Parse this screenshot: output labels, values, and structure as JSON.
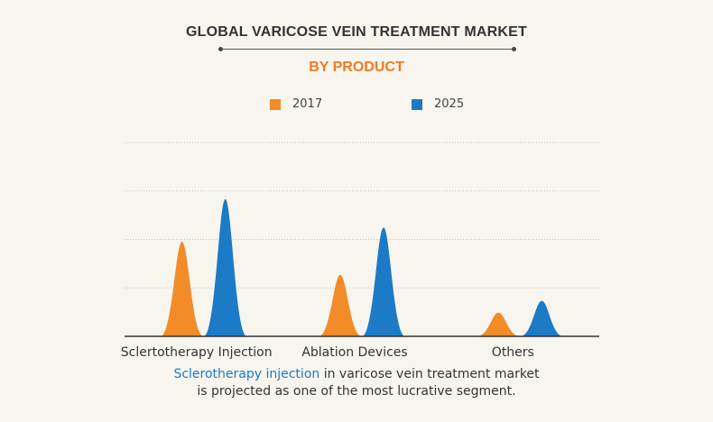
{
  "title": "GLOBAL VARICOSE VEIN TREATMENT MARKET",
  "subtitle": "BY PRODUCT",
  "colors": {
    "2017": "#f28c28",
    "2025": "#1b7bc6",
    "subtitle": "#f07a22",
    "highlight": "#1b7bc6"
  },
  "legend": [
    {
      "label": "2017",
      "color": "#f28c28"
    },
    {
      "label": "2025",
      "color": "#1b7bc6"
    }
  ],
  "chart_data": {
    "type": "area",
    "categories": [
      "Sclertotherapy Injection",
      "Ablation Devices",
      "Others"
    ],
    "series": [
      {
        "name": "2017",
        "values": [
          2.0,
          1.3,
          0.5
        ]
      },
      {
        "name": "2025",
        "values": [
          2.9,
          2.3,
          0.75
        ]
      }
    ],
    "ylim": [
      0,
      4.1
    ],
    "grid": true,
    "legend_position": "top-center"
  },
  "caption": {
    "highlight": "Sclerotherapy injection",
    "line1_rest": " in varicose vein treatment market",
    "line2": "is projected as one of the most lucrative segment."
  }
}
